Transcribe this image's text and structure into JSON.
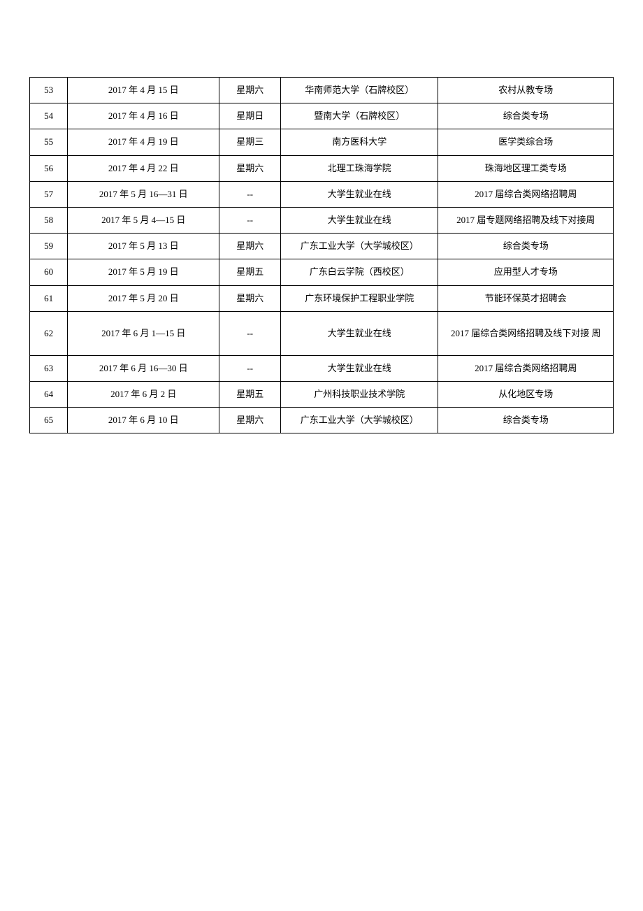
{
  "table": {
    "type": "table",
    "columns": [
      {
        "key": "idx",
        "width_pct": 6.5,
        "align": "center"
      },
      {
        "key": "date",
        "width_pct": 26,
        "align": "center"
      },
      {
        "key": "day",
        "width_pct": 10.5,
        "align": "center"
      },
      {
        "key": "location",
        "width_pct": 27,
        "align": "center"
      },
      {
        "key": "topic",
        "width_pct": 30,
        "align": "center"
      }
    ],
    "border_color": "#000000",
    "background_color": "#ffffff",
    "text_color": "#000000",
    "font_size_pt": 10,
    "rows": [
      {
        "idx": "53",
        "date": "2017 年 4 月 15 日",
        "day": "星期六",
        "location": "华南师范大学（石牌校区）",
        "topic": "农村从教专场",
        "tall": false
      },
      {
        "idx": "54",
        "date": "2017 年 4 月 16 日",
        "day": "星期日",
        "location": "暨南大学（石牌校区）",
        "topic": "综合类专场",
        "tall": false
      },
      {
        "idx": "55",
        "date": "2017 年 4 月 19 日",
        "day": "星期三",
        "location": "南方医科大学",
        "topic": "医学类综合场",
        "tall": false
      },
      {
        "idx": "56",
        "date": "2017 年 4 月 22 日",
        "day": "星期六",
        "location": "北理工珠海学院",
        "topic": "珠海地区理工类专场",
        "tall": false
      },
      {
        "idx": "57",
        "date": "2017 年 5 月 16—31 日",
        "day": "--",
        "location": "大学生就业在线",
        "topic": "2017 届综合类网络招聘周",
        "tall": false
      },
      {
        "idx": "58",
        "date": "2017 年 5 月 4—15 日",
        "day": "--",
        "location": "大学生就业在线",
        "topic": "2017 届专题网络招聘及线下对接周",
        "tall": false
      },
      {
        "idx": "59",
        "date": "2017 年 5 月 13 日",
        "day": "星期六",
        "location": "广东工业大学（大学城校区）",
        "topic": "综合类专场",
        "tall": false
      },
      {
        "idx": "60",
        "date": "2017 年 5 月 19 日",
        "day": "星期五",
        "location": "广东白云学院（西校区）",
        "topic": "应用型人才专场",
        "tall": false
      },
      {
        "idx": "61",
        "date": "2017 年 5 月 20 日",
        "day": "星期六",
        "location": "广东环境保护工程职业学院",
        "topic": "节能环保英才招聘会",
        "tall": false
      },
      {
        "idx": "62",
        "date": "2017 年 6 月 1—15 日",
        "day": "--",
        "location": "大学生就业在线",
        "topic": "2017 届综合类网络招聘及线下对接  周",
        "tall": true
      },
      {
        "idx": "63",
        "date": "2017 年 6 月 16—30 日",
        "day": "--",
        "location": "大学生就业在线",
        "topic": "2017 届综合类网络招聘周",
        "tall": false
      },
      {
        "idx": "64",
        "date": "2017 年 6 月 2 日",
        "day": "星期五",
        "location": "广州科技职业技术学院",
        "topic": "从化地区专场",
        "tall": false
      },
      {
        "idx": "65",
        "date": "2017 年 6 月 10 日",
        "day": "星期六",
        "location": "广东工业大学（大学城校区）",
        "topic": "综合类专场",
        "tall": false
      }
    ]
  }
}
